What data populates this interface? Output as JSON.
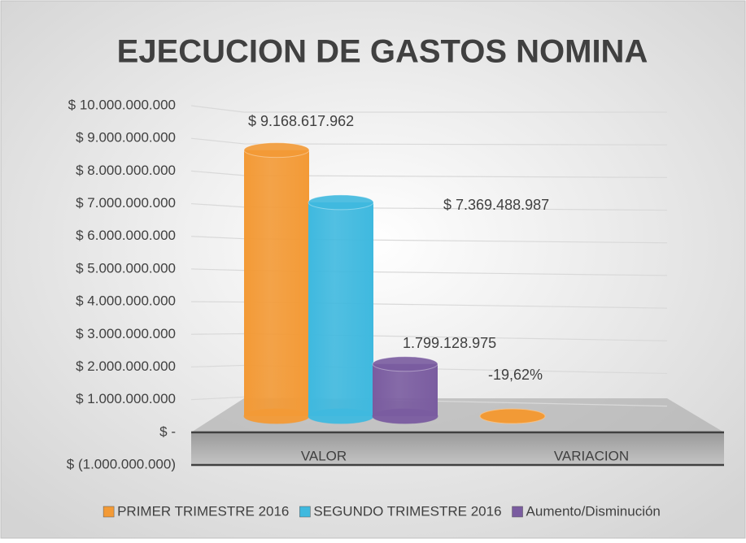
{
  "chart_data": {
    "type": "bar3d",
    "title": "EJECUCION DE GASTOS NOMINA",
    "categories": [
      "VALOR",
      "VARIACION"
    ],
    "series": [
      {
        "name": "PRIMER TRIMESTRE 2016",
        "color": "#f39a36",
        "values": [
          9168617962,
          -19.62
        ],
        "value_labels": [
          "$ 9.168.617.962",
          "-19,62%"
        ]
      },
      {
        "name": "SEGUNDO TRIMESTRE 2016",
        "color": "#3fb9df",
        "values": [
          7369488987,
          null
        ],
        "value_labels": [
          "$ 7.369.488.987",
          null
        ]
      },
      {
        "name": "Aumento/Disminución",
        "color": "#7a5ca0",
        "values": [
          1799128975,
          null
        ],
        "value_labels": [
          "1.799.128.975",
          null
        ]
      }
    ],
    "ylim": [
      -1000000000,
      10000000000
    ],
    "yticks": [
      {
        "value": -1000000000,
        "label": "$ (1.000.000.000)"
      },
      {
        "value": 0,
        "label": "$ -"
      },
      {
        "value": 1000000000,
        "label": "$ 1.000.000.000"
      },
      {
        "value": 2000000000,
        "label": "$ 2.000.000.000"
      },
      {
        "value": 3000000000,
        "label": "$ 3.000.000.000"
      },
      {
        "value": 4000000000,
        "label": "$ 4.000.000.000"
      },
      {
        "value": 5000000000,
        "label": "$ 5.000.000.000"
      },
      {
        "value": 6000000000,
        "label": "$ 6.000.000.000"
      },
      {
        "value": 7000000000,
        "label": "$ 7.000.000.000"
      },
      {
        "value": 8000000000,
        "label": "$ 8.000.000.000"
      },
      {
        "value": 9000000000,
        "label": "$ 9.000.000.000"
      },
      {
        "value": 10000000000,
        "label": "$ 10.000.000.000"
      }
    ],
    "grid": true,
    "legend": "bottom"
  }
}
